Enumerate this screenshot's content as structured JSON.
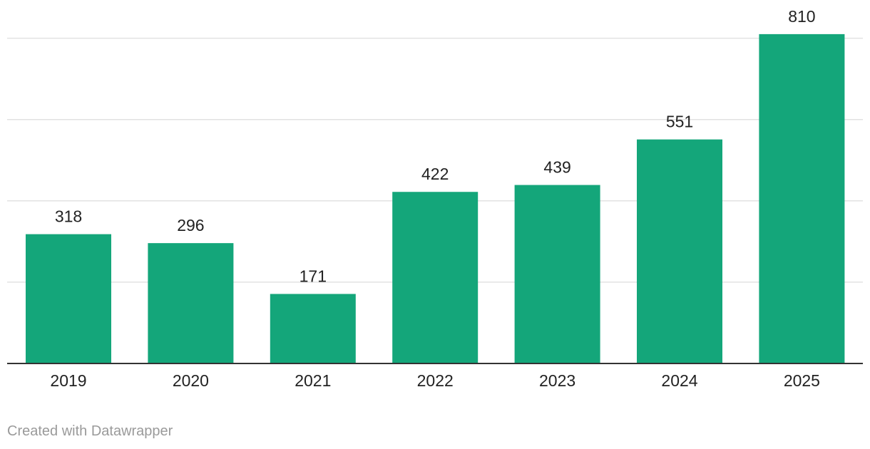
{
  "chart_data": {
    "type": "bar",
    "categories": [
      "2019",
      "2020",
      "2021",
      "2022",
      "2023",
      "2024",
      "2025"
    ],
    "values": [
      318,
      296,
      171,
      422,
      439,
      551,
      810
    ],
    "title": "",
    "xlabel": "",
    "ylabel": "",
    "ylim": [
      0,
      800
    ],
    "grid": true,
    "gridline_step": 200,
    "y_tick_labels_visible": false,
    "data_labels": true,
    "bar_color": "#14a67a",
    "gridline_color": "#e2e2e2",
    "baseline_color": "#333333"
  },
  "footer": {
    "credit": "Created with Datawrapper"
  }
}
